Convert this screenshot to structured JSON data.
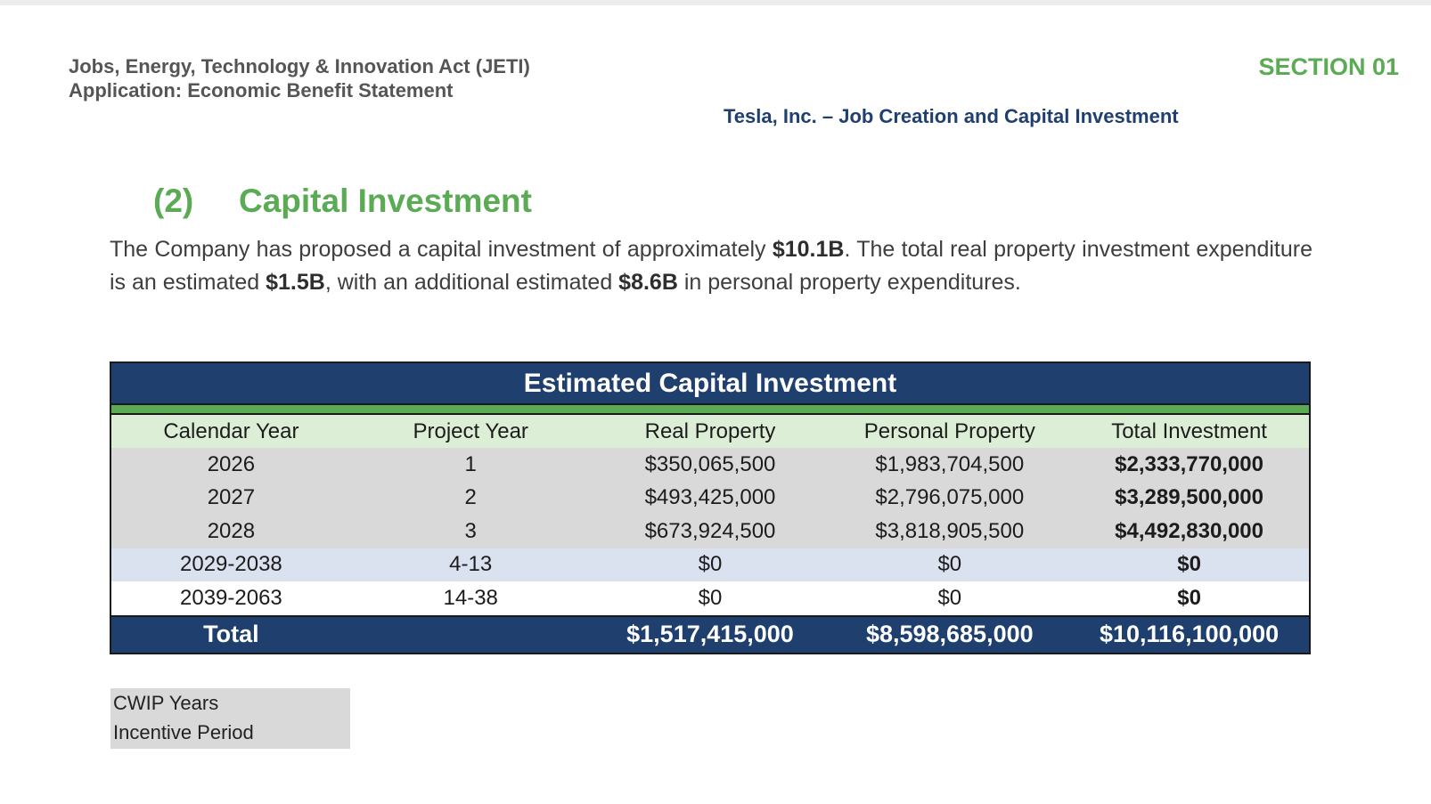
{
  "header": {
    "line1": "Jobs, Energy, Technology & Innovation Act (JETI)",
    "line2": "Application: Economic Benefit Statement",
    "section": "SECTION 01",
    "subtitle": "Tesla, Inc. – Job Creation and Capital Investment"
  },
  "section_heading": {
    "number": "(2)",
    "title": "Capital Investment"
  },
  "paragraph": {
    "p1": "The Company has proposed a capital investment of approximately ",
    "b1": "$10.1B",
    "p2": ". The total real property investment expenditure is an estimated ",
    "b2": "$1.5B",
    "p3": ", with an additional estimated ",
    "b3": "$8.6B",
    "p4": " in personal property expenditures."
  },
  "table": {
    "title": "Estimated Capital Investment",
    "columns": [
      "Calendar Year",
      "Project Year",
      "Real Property",
      "Personal Property",
      "Total Investment"
    ],
    "rows": [
      [
        "2026",
        "1",
        "$350,065,500",
        "$1,983,704,500",
        "$2,333,770,000"
      ],
      [
        "2027",
        "2",
        "$493,425,000",
        "$2,796,075,000",
        "$3,289,500,000"
      ],
      [
        "2028",
        "3",
        "$673,924,500",
        "$3,818,905,500",
        "$4,492,830,000"
      ],
      [
        "2029-2038",
        "4-13",
        "$0",
        "$0",
        "$0"
      ],
      [
        "2039-2063",
        "14-38",
        "$0",
        "$0",
        "$0"
      ]
    ],
    "total": [
      "Total",
      "",
      "$1,517,415,000",
      "$8,598,685,000",
      "$10,116,100,000"
    ]
  },
  "legend": {
    "cwip": "CWIP Years",
    "incentive": "Incentive Period"
  },
  "colors": {
    "navy": "#1f3f6e",
    "green": "#5aab54",
    "header_row": "#dcefd6",
    "cwip_row": "#d9d9d9",
    "incentive_row": "#dbe2ef"
  }
}
